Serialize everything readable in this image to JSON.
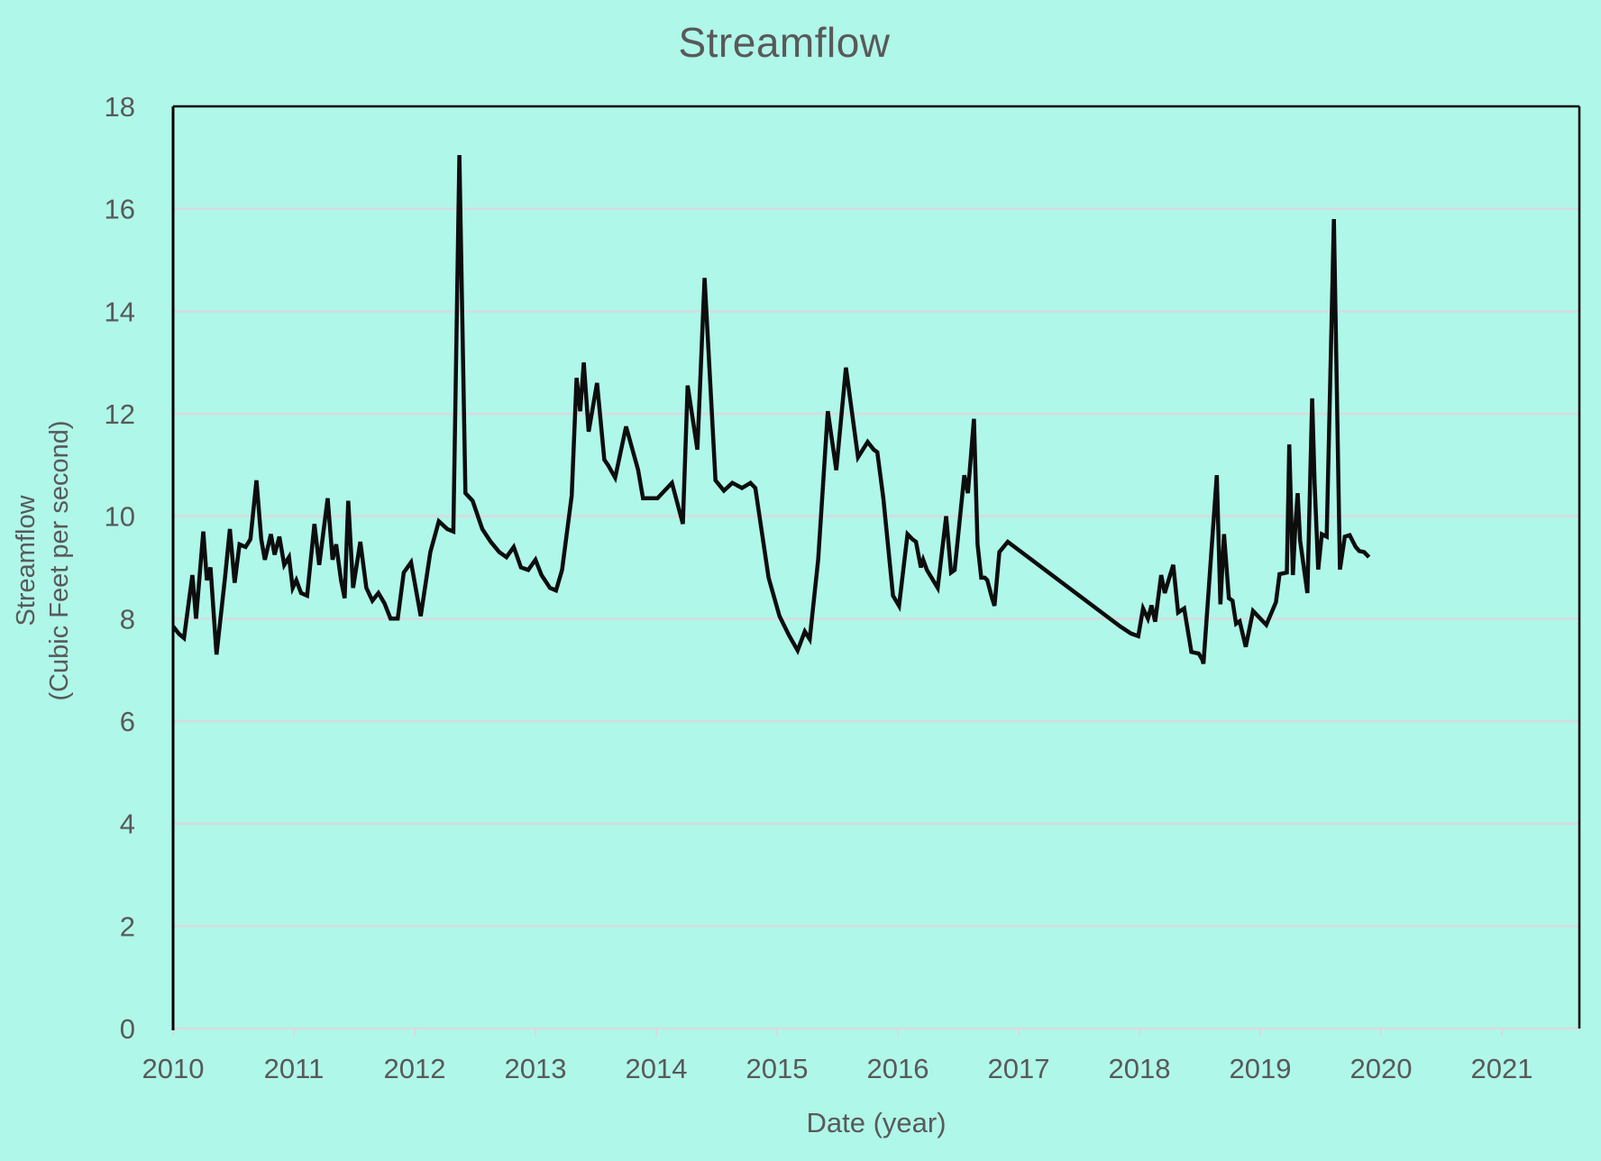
{
  "title": "Streamflow",
  "colors": {
    "background": "#aff7e9",
    "text": "#595959",
    "gridline": "#d7dbdf",
    "axis_border": "#000000",
    "series_line": "#0d0d0d"
  },
  "chart_data": {
    "type": "line",
    "title": "Streamflow",
    "xlabel": "Date (year)",
    "ylabel_line1": "Streamflow",
    "ylabel_line2": "(Cubic Feet per second)",
    "xlim": [
      2010,
      2021.64
    ],
    "ylim": [
      0,
      18
    ],
    "xticks": [
      2010,
      2011,
      2012,
      2013,
      2014,
      2015,
      2016,
      2017,
      2018,
      2019,
      2020,
      2021
    ],
    "yticks": [
      0,
      2,
      4,
      6,
      8,
      10,
      12,
      14,
      16,
      18
    ],
    "grid": "horizontal",
    "legend": "none",
    "series": [
      {
        "name": "Streamflow",
        "color": "#0d0d0d",
        "points": [
          [
            2010.0,
            7.85
          ],
          [
            2010.05,
            7.7
          ],
          [
            2010.09,
            7.62
          ],
          [
            2010.16,
            8.85
          ],
          [
            2010.19,
            8.0
          ],
          [
            2010.25,
            9.7
          ],
          [
            2010.28,
            8.75
          ],
          [
            2010.31,
            9.0
          ],
          [
            2010.36,
            7.3
          ],
          [
            2010.43,
            8.8
          ],
          [
            2010.47,
            9.75
          ],
          [
            2010.51,
            8.7
          ],
          [
            2010.55,
            9.45
          ],
          [
            2010.6,
            9.4
          ],
          [
            2010.64,
            9.55
          ],
          [
            2010.69,
            10.7
          ],
          [
            2010.73,
            9.55
          ],
          [
            2010.76,
            9.15
          ],
          [
            2010.81,
            9.65
          ],
          [
            2010.84,
            9.25
          ],
          [
            2010.88,
            9.6
          ],
          [
            2010.92,
            9.05
          ],
          [
            2010.96,
            9.2
          ],
          [
            2010.99,
            8.6
          ],
          [
            2011.02,
            8.75
          ],
          [
            2011.06,
            8.5
          ],
          [
            2011.11,
            8.45
          ],
          [
            2011.17,
            9.85
          ],
          [
            2011.21,
            9.05
          ],
          [
            2011.28,
            10.35
          ],
          [
            2011.32,
            9.15
          ],
          [
            2011.35,
            9.45
          ],
          [
            2011.39,
            8.75
          ],
          [
            2011.42,
            8.4
          ],
          [
            2011.45,
            10.3
          ],
          [
            2011.49,
            8.6
          ],
          [
            2011.55,
            9.5
          ],
          [
            2011.6,
            8.6
          ],
          [
            2011.65,
            8.35
          ],
          [
            2011.7,
            8.5
          ],
          [
            2011.75,
            8.3
          ],
          [
            2011.8,
            8.0
          ],
          [
            2011.86,
            8.0
          ],
          [
            2011.91,
            8.9
          ],
          [
            2011.97,
            9.1
          ],
          [
            2012.05,
            8.05
          ],
          [
            2012.13,
            9.3
          ],
          [
            2012.2,
            9.9
          ],
          [
            2012.27,
            9.75
          ],
          [
            2012.32,
            9.7
          ],
          [
            2012.37,
            17.05
          ],
          [
            2012.42,
            10.45
          ],
          [
            2012.48,
            10.3
          ],
          [
            2012.56,
            9.75
          ],
          [
            2012.63,
            9.5
          ],
          [
            2012.7,
            9.3
          ],
          [
            2012.76,
            9.2
          ],
          [
            2012.82,
            9.4
          ],
          [
            2012.88,
            9.0
          ],
          [
            2012.94,
            8.95
          ],
          [
            2013.0,
            9.15
          ],
          [
            2013.05,
            8.85
          ],
          [
            2013.12,
            8.6
          ],
          [
            2013.17,
            8.55
          ],
          [
            2013.22,
            8.95
          ],
          [
            2013.3,
            10.4
          ],
          [
            2013.34,
            12.7
          ],
          [
            2013.37,
            12.05
          ],
          [
            2013.4,
            13.0
          ],
          [
            2013.44,
            11.65
          ],
          [
            2013.51,
            12.6
          ],
          [
            2013.57,
            11.1
          ],
          [
            2013.6,
            11.0
          ],
          [
            2013.66,
            10.75
          ],
          [
            2013.75,
            11.75
          ],
          [
            2013.85,
            10.9
          ],
          [
            2013.89,
            10.35
          ],
          [
            2014.01,
            10.35
          ],
          [
            2014.13,
            10.65
          ],
          [
            2014.22,
            9.85
          ],
          [
            2014.26,
            12.55
          ],
          [
            2014.34,
            11.3
          ],
          [
            2014.4,
            14.65
          ],
          [
            2014.49,
            10.7
          ],
          [
            2014.56,
            10.5
          ],
          [
            2014.63,
            10.65
          ],
          [
            2014.71,
            10.55
          ],
          [
            2014.78,
            10.65
          ],
          [
            2014.82,
            10.55
          ],
          [
            2014.93,
            8.8
          ],
          [
            2015.02,
            8.05
          ],
          [
            2015.1,
            7.67
          ],
          [
            2015.17,
            7.38
          ],
          [
            2015.23,
            7.75
          ],
          [
            2015.27,
            7.6
          ],
          [
            2015.34,
            9.15
          ],
          [
            2015.42,
            12.05
          ],
          [
            2015.49,
            10.9
          ],
          [
            2015.57,
            12.9
          ],
          [
            2015.67,
            11.15
          ],
          [
            2015.75,
            11.45
          ],
          [
            2015.8,
            11.3
          ],
          [
            2015.83,
            11.25
          ],
          [
            2015.88,
            10.35
          ],
          [
            2015.96,
            8.45
          ],
          [
            2016.01,
            8.25
          ],
          [
            2016.08,
            9.65
          ],
          [
            2016.12,
            9.55
          ],
          [
            2016.15,
            9.5
          ],
          [
            2016.19,
            9.0
          ],
          [
            2016.21,
            9.15
          ],
          [
            2016.24,
            8.95
          ],
          [
            2016.33,
            8.6
          ],
          [
            2016.4,
            10.0
          ],
          [
            2016.44,
            8.9
          ],
          [
            2016.47,
            8.95
          ],
          [
            2016.55,
            10.8
          ],
          [
            2016.58,
            10.45
          ],
          [
            2016.63,
            11.9
          ],
          [
            2016.66,
            9.45
          ],
          [
            2016.69,
            8.8
          ],
          [
            2016.72,
            8.8
          ],
          [
            2016.74,
            8.75
          ],
          [
            2016.78,
            8.4
          ],
          [
            2016.8,
            8.25
          ],
          [
            2016.84,
            9.3
          ],
          [
            2016.91,
            9.5
          ],
          [
            2017.84,
            7.85
          ],
          [
            2017.93,
            7.71
          ],
          [
            2017.99,
            7.66
          ],
          [
            2018.03,
            8.2
          ],
          [
            2018.07,
            8.0
          ],
          [
            2018.1,
            8.26
          ],
          [
            2018.13,
            7.94
          ],
          [
            2018.18,
            8.85
          ],
          [
            2018.21,
            8.5
          ],
          [
            2018.25,
            8.82
          ],
          [
            2018.28,
            9.05
          ],
          [
            2018.32,
            8.12
          ],
          [
            2018.37,
            8.2
          ],
          [
            2018.43,
            7.35
          ],
          [
            2018.49,
            7.32
          ],
          [
            2018.52,
            7.2
          ],
          [
            2018.53,
            7.12
          ],
          [
            2018.64,
            10.8
          ],
          [
            2018.67,
            8.28
          ],
          [
            2018.7,
            9.65
          ],
          [
            2018.74,
            8.4
          ],
          [
            2018.77,
            8.35
          ],
          [
            2018.8,
            7.9
          ],
          [
            2018.83,
            7.95
          ],
          [
            2018.88,
            7.45
          ],
          [
            2018.94,
            8.15
          ],
          [
            2019.05,
            7.88
          ],
          [
            2019.13,
            8.32
          ],
          [
            2019.16,
            8.87
          ],
          [
            2019.22,
            8.9
          ],
          [
            2019.24,
            11.4
          ],
          [
            2019.27,
            8.85
          ],
          [
            2019.29,
            9.8
          ],
          [
            2019.31,
            10.45
          ],
          [
            2019.33,
            9.53
          ],
          [
            2019.39,
            8.5
          ],
          [
            2019.43,
            12.3
          ],
          [
            2019.45,
            10.64
          ],
          [
            2019.48,
            8.96
          ],
          [
            2019.51,
            9.65
          ],
          [
            2019.55,
            9.6
          ],
          [
            2019.61,
            15.8
          ],
          [
            2019.66,
            8.96
          ],
          [
            2019.7,
            9.6
          ],
          [
            2019.74,
            9.63
          ],
          [
            2019.79,
            9.4
          ],
          [
            2019.82,
            9.32
          ],
          [
            2019.86,
            9.3
          ],
          [
            2019.9,
            9.2
          ]
        ]
      }
    ]
  }
}
